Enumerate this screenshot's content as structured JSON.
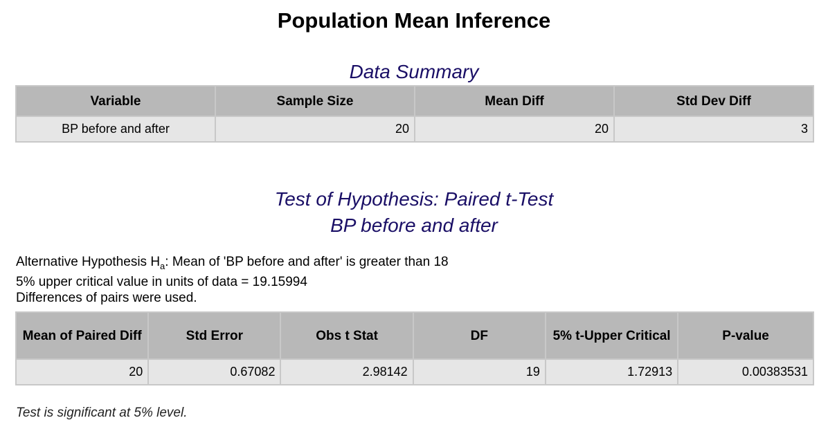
{
  "title": "Population Mean Inference",
  "summary": {
    "heading": "Data Summary",
    "columns": [
      "Variable",
      "Sample Size",
      "Mean Diff",
      "Std Dev Diff"
    ],
    "row": [
      "BP before and after",
      "20",
      "20",
      "3"
    ]
  },
  "test": {
    "heading_line1": "Test of Hypothesis: Paired t-Test",
    "heading_line2": "BP before and after",
    "hyp_prefix": "Alternative Hypothesis H",
    "hyp_sub": "a",
    "hyp_suffix": ": Mean of 'BP before and after' is greater than 18",
    "critical_line": "5% upper critical value in units of data = 19.15994",
    "pairs_line": "Differences of pairs were used.",
    "columns": [
      "Mean of Paired Diff",
      "Std Error",
      "Obs t Stat",
      "DF",
      "5% t-Upper Critical",
      "P-value"
    ],
    "row": [
      "20",
      "0.67082",
      "2.98142",
      "19",
      "1.72913",
      "0.00383531"
    ]
  },
  "conclusion": "Test is significant at 5% level."
}
